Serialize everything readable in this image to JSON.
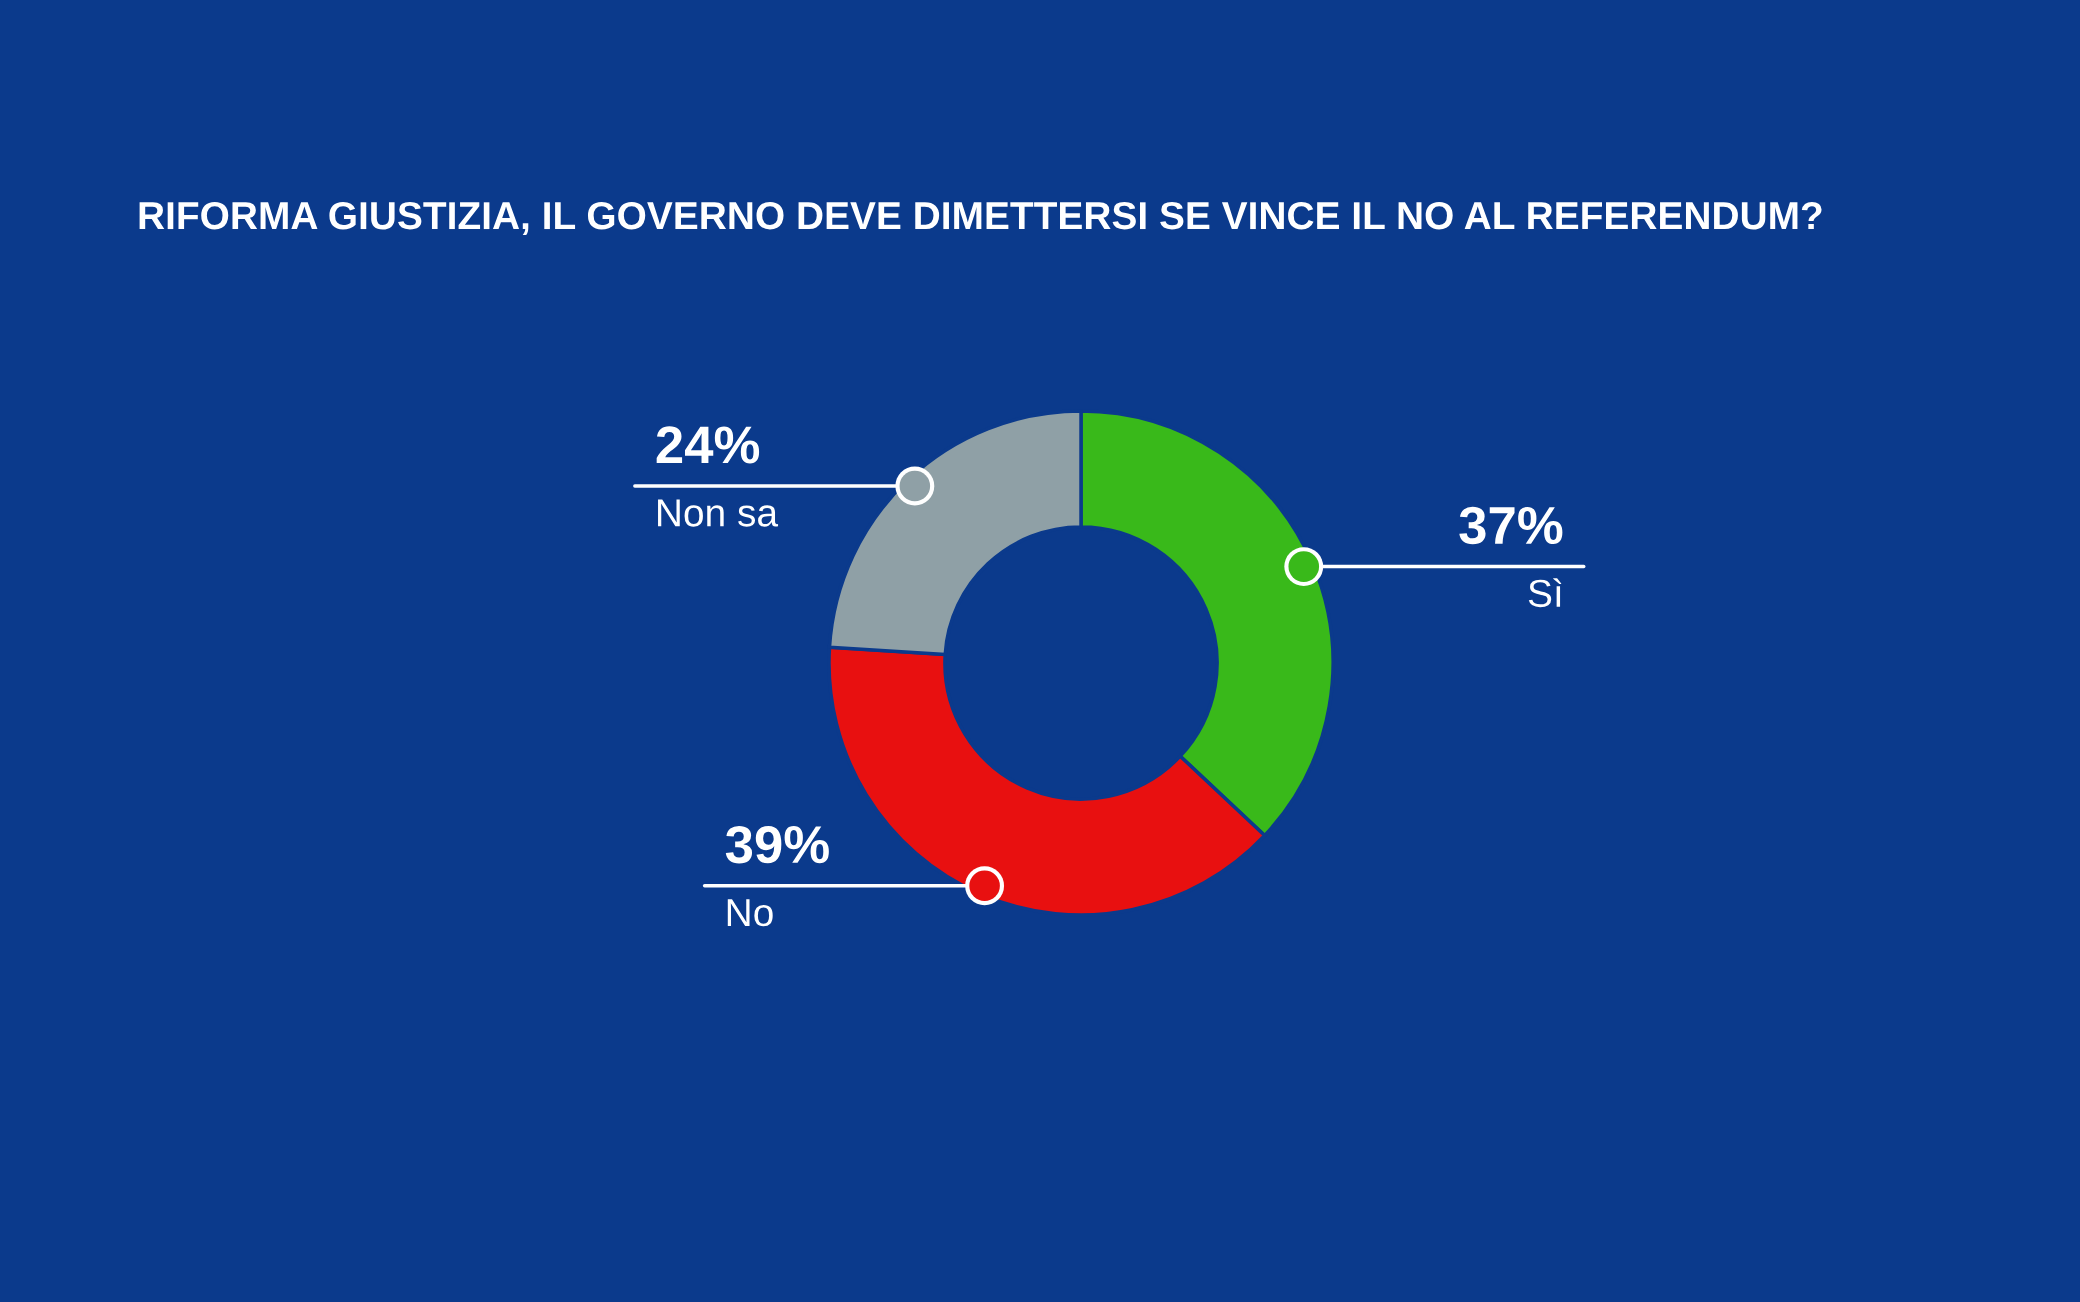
{
  "chart_data": {
    "type": "donut",
    "title": "RIFORMA GIUSTIZIA, IL GOVERNO DEVE DIMETTERSI SE VINCE IL NO AL REFERENDUM?",
    "categories": [
      "Sì",
      "No",
      "Non sa"
    ],
    "values": [
      37,
      39,
      24
    ],
    "colors": [
      "#39b91a",
      "#e81010",
      "#8fa0a6"
    ],
    "value_labels": [
      "37%",
      "39%",
      "24%"
    ]
  }
}
